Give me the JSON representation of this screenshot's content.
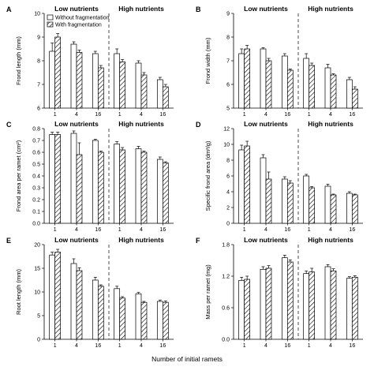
{
  "figure": {
    "xlabel": "Number of initial ramets",
    "group_labels": [
      "Low nutrients",
      "High nutrients"
    ],
    "legend": [
      "Without fragmentation",
      "With fragmentation"
    ],
    "colors": {
      "without": "#ffffff",
      "with_stroke": "#000000",
      "axis": "#000000"
    }
  },
  "chart_data": [
    {
      "type": "bar",
      "panel": "A",
      "ylabel": "Frond length (mm)",
      "ylim": [
        6,
        10
      ],
      "yticks": [
        6,
        7,
        8,
        9,
        10
      ],
      "categories": [
        "1",
        "4",
        "16",
        "1",
        "4",
        "16"
      ],
      "series": [
        {
          "name": "Without fragmentation",
          "values": [
            8.4,
            8.7,
            8.3,
            8.3,
            7.9,
            7.2
          ],
          "errors": [
            0.35,
            0.1,
            0.1,
            0.2,
            0.1,
            0.1
          ]
        },
        {
          "name": "With fragmentation",
          "values": [
            9.0,
            8.35,
            7.7,
            7.95,
            7.4,
            6.9
          ],
          "errors": [
            0.15,
            0.1,
            0.1,
            0.1,
            0.1,
            0.1
          ]
        }
      ]
    },
    {
      "type": "bar",
      "panel": "B",
      "ylabel": "Frond width (mm)",
      "ylim": [
        5,
        9
      ],
      "yticks": [
        5,
        6,
        7,
        8,
        9
      ],
      "categories": [
        "1",
        "4",
        "16",
        "1",
        "4",
        "16"
      ],
      "series": [
        {
          "name": "Without fragmentation",
          "values": [
            7.3,
            7.5,
            7.2,
            7.1,
            6.7,
            6.2
          ],
          "errors": [
            0.2,
            0.05,
            0.1,
            0.2,
            0.15,
            0.1
          ]
        },
        {
          "name": "With fragmentation",
          "values": [
            7.5,
            7.0,
            6.6,
            6.8,
            6.4,
            5.8
          ],
          "errors": [
            0.15,
            0.1,
            0.05,
            0.1,
            0.05,
            0.1
          ]
        }
      ]
    },
    {
      "type": "bar",
      "panel": "C",
      "ylabel": "Frond area per ramet (cm²)",
      "ylim": [
        0,
        0.8
      ],
      "yticks": [
        0.0,
        0.1,
        0.2,
        0.3,
        0.4,
        0.5,
        0.6,
        0.7,
        0.8
      ],
      "categories": [
        "1",
        "4",
        "16",
        "1",
        "4",
        "16"
      ],
      "series": [
        {
          "name": "Without fragmentation",
          "values": [
            0.75,
            0.76,
            0.7,
            0.67,
            0.63,
            0.54
          ],
          "errors": [
            0.02,
            0.02,
            0.01,
            0.02,
            0.02,
            0.02
          ]
        },
        {
          "name": "With fragmentation",
          "values": [
            0.75,
            0.58,
            0.6,
            0.62,
            0.6,
            0.51
          ],
          "errors": [
            0.02,
            0.1,
            0.01,
            0.02,
            0.01,
            0.01
          ]
        }
      ]
    },
    {
      "type": "bar",
      "panel": "D",
      "ylabel": "Specific frond area (dm²/g)",
      "ylim": [
        0,
        12
      ],
      "yticks": [
        0,
        2,
        4,
        6,
        8,
        10,
        12
      ],
      "categories": [
        "1",
        "4",
        "16",
        "1",
        "4",
        "16"
      ],
      "series": [
        {
          "name": "Without fragmentation",
          "values": [
            9.3,
            8.3,
            5.6,
            6.0,
            4.7,
            3.8
          ],
          "errors": [
            0.6,
            0.4,
            0.3,
            0.2,
            0.25,
            0.2
          ]
        },
        {
          "name": "With fragmentation",
          "values": [
            9.8,
            5.6,
            5.1,
            4.5,
            3.6,
            3.6
          ],
          "errors": [
            0.6,
            0.9,
            0.3,
            0.15,
            0.1,
            0.1
          ]
        }
      ]
    },
    {
      "type": "bar",
      "panel": "E",
      "ylabel": "Root length (mm)",
      "ylim": [
        0,
        20
      ],
      "yticks": [
        0,
        5,
        10,
        15,
        20
      ],
      "categories": [
        "1",
        "4",
        "16",
        "1",
        "4",
        "16"
      ],
      "series": [
        {
          "name": "Without fragmentation",
          "values": [
            17.8,
            16.0,
            12.5,
            10.7,
            9.6,
            8.0
          ],
          "errors": [
            0.6,
            1.0,
            0.6,
            0.5,
            0.3,
            0.3
          ]
        },
        {
          "name": "With fragmentation",
          "values": [
            18.4,
            14.5,
            11.2,
            8.7,
            7.8,
            7.8
          ],
          "errors": [
            0.6,
            0.6,
            0.3,
            0.3,
            0.2,
            0.3
          ]
        }
      ]
    },
    {
      "type": "bar",
      "panel": "F",
      "ylabel": "Mass per ramet (mg)",
      "ylim": [
        0,
        1.8
      ],
      "yticks": [
        0.0,
        0.6,
        1.2,
        1.8
      ],
      "categories": [
        "1",
        "4",
        "16",
        "1",
        "4",
        "16"
      ],
      "series": [
        {
          "name": "Without fragmentation",
          "values": [
            1.12,
            1.33,
            1.55,
            1.25,
            1.38,
            1.16
          ],
          "errors": [
            0.06,
            0.05,
            0.05,
            0.05,
            0.04,
            0.03
          ]
        },
        {
          "name": "With fragmentation",
          "values": [
            1.14,
            1.35,
            1.47,
            1.28,
            1.3,
            1.18
          ],
          "errors": [
            0.06,
            0.05,
            0.04,
            0.07,
            0.04,
            0.03
          ]
        }
      ]
    }
  ]
}
